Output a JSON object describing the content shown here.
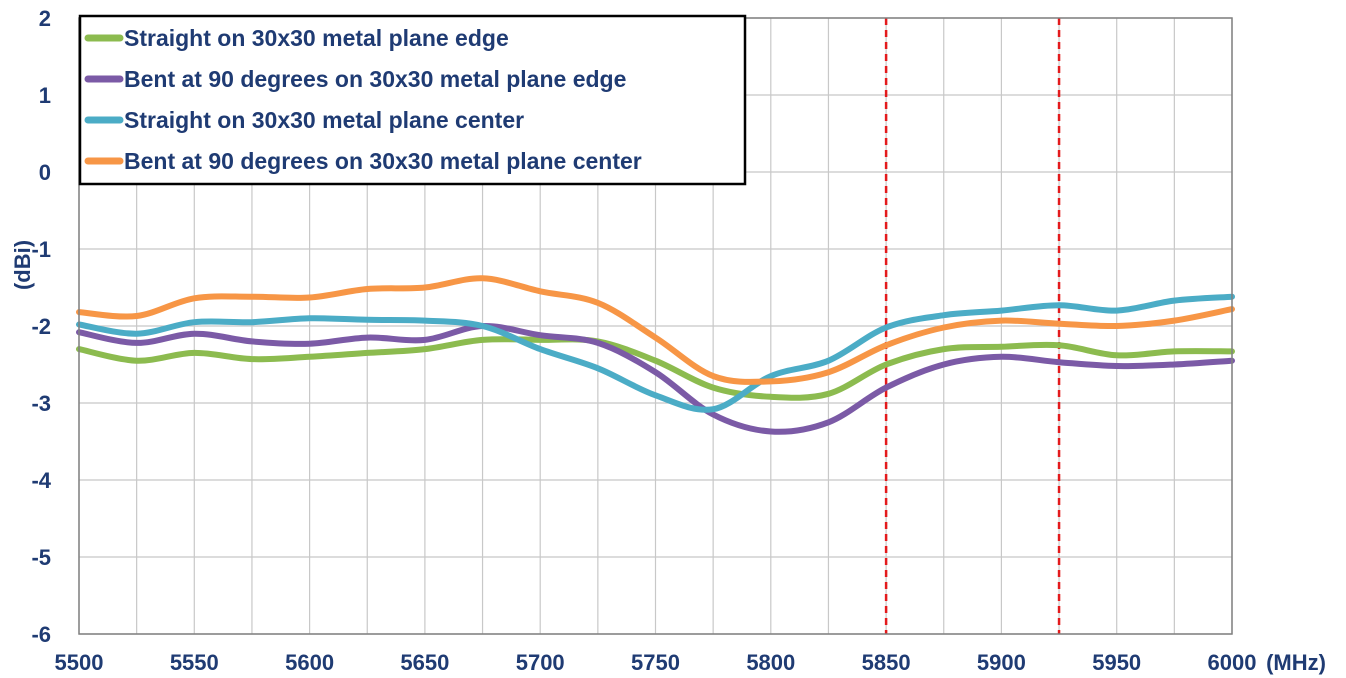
{
  "chart_data": {
    "type": "line",
    "xlabel": "(MHz)",
    "ylabel": "(dBi)",
    "xlim": [
      5500,
      6000
    ],
    "ylim": [
      -6,
      2
    ],
    "x_ticks": [
      5500,
      5550,
      5600,
      5650,
      5700,
      5750,
      5800,
      5850,
      5900,
      5950,
      6000
    ],
    "y_ticks": [
      2,
      1,
      0,
      -1,
      -2,
      -3,
      -4,
      -5,
      -6
    ],
    "x_tick_labels": [
      "5500",
      "5550",
      "5600",
      "5650",
      "5700",
      "5750",
      "5800",
      "5850",
      "5900",
      "5950",
      "6000"
    ],
    "y_tick_labels": [
      "2",
      "1",
      "0",
      "-1",
      "-2",
      "-3",
      "-4",
      "-5",
      "-6"
    ],
    "grid": true,
    "legend_position": "top-left",
    "reference_lines": [
      {
        "x": 5850,
        "color": "#e31a1c",
        "style": "dashed"
      },
      {
        "x": 5925,
        "color": "#e31a1c",
        "style": "dashed"
      }
    ],
    "x": [
      5500,
      5525,
      5550,
      5575,
      5600,
      5625,
      5650,
      5675,
      5700,
      5725,
      5750,
      5775,
      5800,
      5825,
      5850,
      5875,
      5900,
      5925,
      5950,
      5975,
      6000
    ],
    "series": [
      {
        "name": "Straight on 30x30 metal plane edge",
        "color": "#8cbb4f",
        "values": [
          -2.3,
          -2.45,
          -2.35,
          -2.43,
          -2.4,
          -2.35,
          -2.3,
          -2.18,
          -2.18,
          -2.2,
          -2.45,
          -2.8,
          -2.92,
          -2.88,
          -2.5,
          -2.3,
          -2.27,
          -2.25,
          -2.38,
          -2.33,
          -2.33
        ]
      },
      {
        "name": "Bent at 90 degrees on 30x30 metal plane edge",
        "color": "#7b5aa6",
        "values": [
          -2.08,
          -2.22,
          -2.1,
          -2.2,
          -2.23,
          -2.15,
          -2.18,
          -2.0,
          -2.12,
          -2.22,
          -2.6,
          -3.15,
          -3.37,
          -3.25,
          -2.8,
          -2.5,
          -2.4,
          -2.47,
          -2.52,
          -2.5,
          -2.45
        ]
      },
      {
        "name": "Straight on 30x30 metal plane center",
        "color": "#4bacc6",
        "values": [
          -1.98,
          -2.1,
          -1.95,
          -1.95,
          -1.9,
          -1.92,
          -1.93,
          -2.0,
          -2.3,
          -2.55,
          -2.9,
          -3.08,
          -2.65,
          -2.45,
          -2.02,
          -1.86,
          -1.8,
          -1.73,
          -1.8,
          -1.67,
          -1.62
        ]
      },
      {
        "name": "Bent at 90 degrees on 30x30 metal plane center",
        "color": "#f79646",
        "values": [
          -1.82,
          -1.87,
          -1.64,
          -1.62,
          -1.63,
          -1.52,
          -1.5,
          -1.38,
          -1.55,
          -1.7,
          -2.15,
          -2.65,
          -2.72,
          -2.6,
          -2.25,
          -2.02,
          -1.93,
          -1.97,
          -2.0,
          -1.93,
          -1.78
        ]
      }
    ]
  }
}
